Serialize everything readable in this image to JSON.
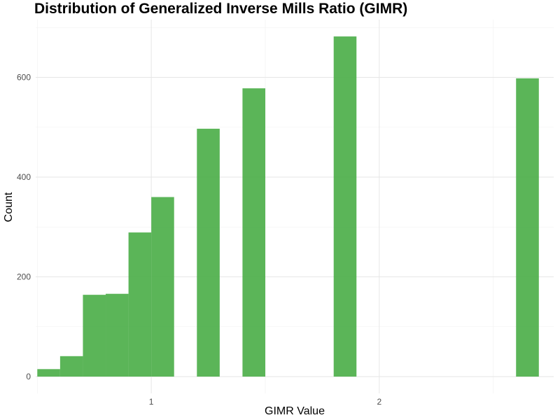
{
  "chart_data": {
    "type": "bar",
    "title": "Distribution of Generalized Inverse Mills Ratio (GIMR)",
    "xlabel": "GIMR Value",
    "ylabel": "Count",
    "bar_color": "#4daf4a",
    "grid": true,
    "xlim": [
      0.4929,
      2.7651
    ],
    "ylim": [
      0,
      700
    ],
    "x_ticks": [
      1,
      2
    ],
    "x_minor_ticks": [
      0.5,
      1.5,
      2.5
    ],
    "y_ticks": [
      0,
      200,
      400,
      600
    ],
    "y_minor_ticks": [
      100,
      300,
      500,
      700
    ],
    "bin_width": 0.1,
    "bars": [
      {
        "x0": 0.5,
        "x1": 0.6,
        "count": 15
      },
      {
        "x0": 0.6,
        "x1": 0.7,
        "count": 41
      },
      {
        "x0": 0.7,
        "x1": 0.8,
        "count": 164
      },
      {
        "x0": 0.8,
        "x1": 0.9,
        "count": 166
      },
      {
        "x0": 0.9,
        "x1": 1.0,
        "count": 289
      },
      {
        "x0": 1.0,
        "x1": 1.1,
        "count": 360
      },
      {
        "x0": 1.2,
        "x1": 1.3,
        "count": 497
      },
      {
        "x0": 1.4,
        "x1": 1.5,
        "count": 578
      },
      {
        "x0": 1.8,
        "x1": 1.9,
        "count": 682
      },
      {
        "x0": 2.6,
        "x1": 2.7,
        "count": 598
      }
    ]
  }
}
